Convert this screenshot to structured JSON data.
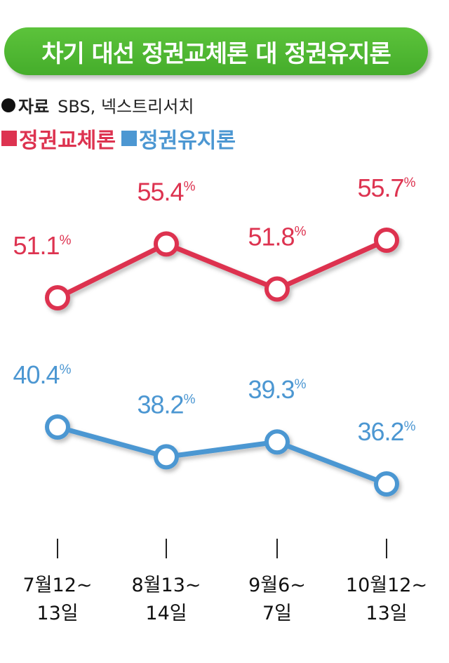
{
  "header": {
    "title": "차기 대선 정권교체론 대 정권유지론"
  },
  "source": {
    "label": "자료",
    "text": "SBS, 넥스트리서치"
  },
  "colors": {
    "title_bg": "#4fb834",
    "replace": "#dd3350",
    "maintain": "#4c97d2"
  },
  "chart_data": {
    "type": "line",
    "unit": "%",
    "categories": [
      [
        "7월12~",
        "13일"
      ],
      [
        "8월13~",
        "14일"
      ],
      [
        "9월6~",
        "7일"
      ],
      [
        "10월12~",
        "13일"
      ]
    ],
    "series": [
      {
        "name": "정권교체론",
        "color": "#dd3350",
        "values": [
          51.1,
          55.4,
          51.8,
          55.7
        ]
      },
      {
        "name": "정권유지론",
        "color": "#4c97d2",
        "values": [
          40.4,
          38.2,
          39.3,
          36.2
        ]
      }
    ],
    "legend": "top-left",
    "grid": false
  }
}
